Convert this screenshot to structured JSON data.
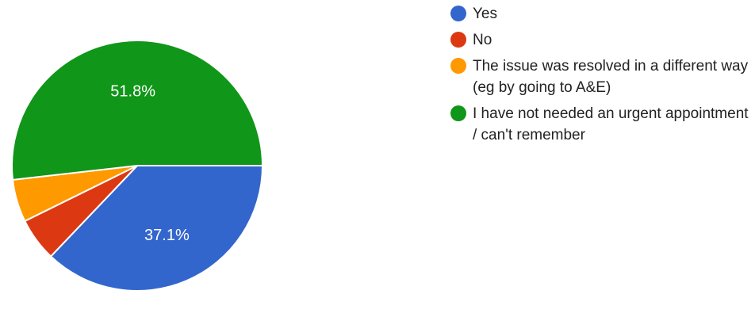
{
  "chart_data": {
    "type": "pie",
    "title": "",
    "start_angle_deg": 90,
    "slices": [
      {
        "label": "Yes",
        "value": 37.1,
        "color": "#3366cc",
        "show_label": true,
        "display": "37.1%"
      },
      {
        "label": "No",
        "value": 5.6,
        "color": "#dc3912",
        "show_label": false,
        "display": ""
      },
      {
        "label": "The issue was resolved in a different way (eg by going to A&E)",
        "value": 5.5,
        "color": "#ff9900",
        "show_label": false,
        "display": ""
      },
      {
        "label": "I have not needed an urgent appointment / can't remember",
        "value": 51.8,
        "color": "#109618",
        "show_label": true,
        "display": "51.8%"
      }
    ],
    "legend_position": "right"
  }
}
